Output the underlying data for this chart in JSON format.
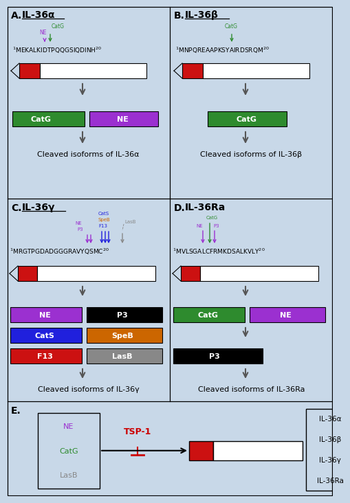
{
  "bg_color": "#c8d8e8",
  "colors": {
    "CatG": "#2e8b2e",
    "NE": "#9b30d0",
    "CatS": "#2020dd",
    "SpeB": "#cc6600",
    "F13": "#cc1111",
    "LasB": "#888888",
    "P3": "#000000",
    "red_block": "#cc1111",
    "white_block": "#ffffff",
    "TSP1": "#cc0000",
    "arrow_color": "#555555"
  },
  "panel_A": {
    "title": "A.  IL-36α",
    "sequence": "$^1$MEKALKIDTPQQGSIQDINH$^{20}$",
    "cleavage_labels": [
      "CatG",
      "NE"
    ],
    "isoform_bars": [
      [
        "CatG",
        "#2e8b2e"
      ],
      [
        "NE",
        "#9b30d0"
      ]
    ],
    "cleaved_text": "Cleaved isoforms of IL-36α"
  },
  "panel_B": {
    "title": "B.  IL-36β",
    "sequence": "$^1$MNPQREAAPKSYAIRDSRQM$^{20}$",
    "cleavage_labels": [
      "CatG"
    ],
    "isoform_bars": [
      [
        "CatG",
        "#2e8b2e"
      ]
    ],
    "cleaved_text": "Cleaved isoforms of IL-36β"
  },
  "panel_C": {
    "title": "C.  IL-36γ",
    "sequence": "$^1$MRGTPGDADGGGRAVYQSMC$^{20}$",
    "cleaved_text": "Cleaved isoforms of IL-36γ"
  },
  "panel_D": {
    "title": "D.  IL-36Ra",
    "sequence": "$^1$MVLSGALCFRMKDSALKVLY$^{20}$",
    "cleaved_text": "Cleaved isoforms of IL-36Ra"
  },
  "panel_E": {
    "box_labels": [
      "NE",
      "CatG",
      "LasB"
    ],
    "box_colors": [
      "#9b30d0",
      "#2e8b2e",
      "#888888"
    ],
    "tsp_label": "TSP-1",
    "legend": [
      "IL-36α",
      "IL-36β",
      "IL-36γ",
      "IL-36Ra"
    ]
  }
}
